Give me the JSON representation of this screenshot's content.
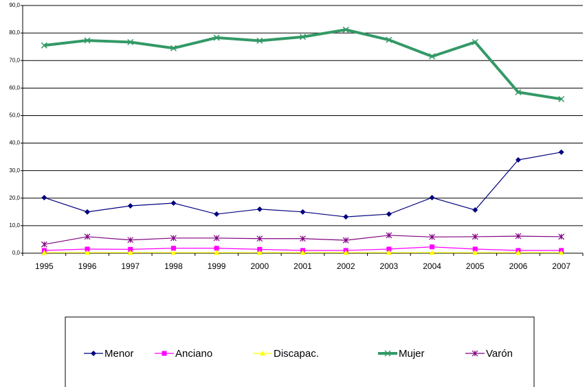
{
  "chart_data": {
    "type": "line",
    "categories": [
      "1995",
      "1996",
      "1997",
      "1998",
      "1999",
      "2000",
      "2001",
      "2002",
      "2003",
      "2004",
      "2005",
      "2006",
      "2007"
    ],
    "series": [
      {
        "name": "Menor",
        "color": "#000080",
        "marker": "diamond",
        "values": [
          20.2,
          15.0,
          17.2,
          18.2,
          14.2,
          16.0,
          15.0,
          13.2,
          14.2,
          20.2,
          15.7,
          33.9,
          36.7
        ]
      },
      {
        "name": "Anciano",
        "color": "#ff00ff",
        "marker": "square",
        "values": [
          1.0,
          1.5,
          1.4,
          1.8,
          1.8,
          1.4,
          1.0,
          1.0,
          1.5,
          2.3,
          1.5,
          1.0,
          1.0
        ]
      },
      {
        "name": "Discapac.",
        "color": "#ffff00",
        "marker": "triangle",
        "values": [
          0.2,
          0.2,
          0.2,
          0.2,
          0.2,
          0.2,
          0.2,
          0.2,
          0.2,
          0.2,
          0.2,
          0.2,
          0.2
        ]
      },
      {
        "name": "Mujer",
        "color": "#339966",
        "marker": "x",
        "width": 4,
        "values": [
          75.5,
          77.3,
          76.7,
          74.5,
          78.3,
          77.2,
          78.6,
          81.2,
          77.5,
          71.5,
          76.7,
          58.5,
          56.0
        ]
      },
      {
        "name": "Varón",
        "color": "#800080",
        "marker": "asterisk",
        "values": [
          3.2,
          6.0,
          4.8,
          5.5,
          5.5,
          5.3,
          5.3,
          4.7,
          6.5,
          5.9,
          6.0,
          6.2,
          6.0
        ]
      }
    ],
    "ylim": [
      0,
      90
    ],
    "yticks": [
      {
        "value": 0,
        "label": "0,0"
      },
      {
        "value": 10,
        "label": "10,0"
      },
      {
        "value": 20,
        "label": "20,0"
      },
      {
        "value": 30,
        "label": "30,0"
      },
      {
        "value": 40,
        "label": "40,0"
      },
      {
        "value": 50,
        "label": "50,0"
      },
      {
        "value": 60,
        "label": "60,0"
      },
      {
        "value": 70,
        "label": "70,0"
      },
      {
        "value": 80,
        "label": "80,0"
      },
      {
        "value": 90,
        "label": "90,0"
      }
    ],
    "grid": true,
    "legend": "bottom"
  }
}
